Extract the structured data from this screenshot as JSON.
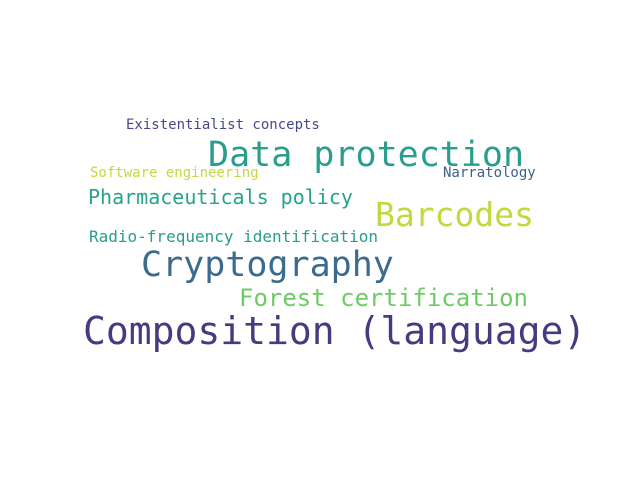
{
  "words": [
    {
      "text": "Existentialist concepts",
      "color": "#46488a"
    },
    {
      "text": "Data protection",
      "color": "#2a9e8e"
    },
    {
      "text": "Software engineering",
      "color": "#c3d841"
    },
    {
      "text": "Narratology",
      "color": "#3d5f89"
    },
    {
      "text": "Pharmaceuticals policy",
      "color": "#26a38a"
    },
    {
      "text": "Barcodes",
      "color": "#bedb3d"
    },
    {
      "text": "Radio-frequency identification",
      "color": "#279d8c"
    },
    {
      "text": "Cryptography",
      "color": "#3b6b8e"
    },
    {
      "text": "Forest certification",
      "color": "#6ccc63"
    },
    {
      "text": "Composition (language)",
      "color": "#433d80"
    }
  ]
}
